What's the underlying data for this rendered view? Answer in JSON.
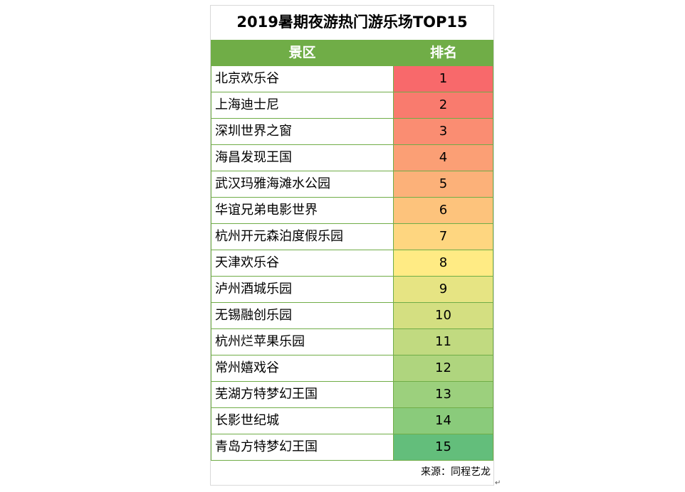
{
  "chart_data": {
    "type": "table",
    "title": "2019暑期夜游热门游乐场TOP15",
    "columns": [
      "景区",
      "排名"
    ],
    "rows": [
      {
        "name": "北京欢乐谷",
        "rank": 1,
        "color": "#f8696b"
      },
      {
        "name": "上海迪士尼",
        "rank": 2,
        "color": "#f97b6e"
      },
      {
        "name": "深圳世界之窗",
        "rank": 3,
        "color": "#fa8d72"
      },
      {
        "name": "海昌发现王国",
        "rank": 4,
        "color": "#fb9f75"
      },
      {
        "name": "武汉玛雅海滩水公园",
        "rank": 5,
        "color": "#fcb179"
      },
      {
        "name": "华谊兄弟电影世界",
        "rank": 6,
        "color": "#fdc37c"
      },
      {
        "name": "杭州开元森泊度假乐园",
        "rank": 7,
        "color": "#fed680"
      },
      {
        "name": "天津欢乐谷",
        "rank": 8,
        "color": "#ffeb84"
      },
      {
        "name": "泸州酒城乐园",
        "rank": 9,
        "color": "#e6e483"
      },
      {
        "name": "无锡融创乐园",
        "rank": 10,
        "color": "#d4df81"
      },
      {
        "name": "杭州烂苹果乐园",
        "rank": 11,
        "color": "#c1da80"
      },
      {
        "name": "常州嬉戏谷",
        "rank": 12,
        "color": "#afd57e"
      },
      {
        "name": "芜湖方特梦幻王国",
        "rank": 13,
        "color": "#9cd07d"
      },
      {
        "name": "长影世纪城",
        "rank": 14,
        "color": "#8acb7b"
      },
      {
        "name": "青岛方特梦幻王国",
        "rank": 15,
        "color": "#63be7b"
      }
    ],
    "header_color": "#70ad47",
    "source": "来源：同程艺龙"
  }
}
